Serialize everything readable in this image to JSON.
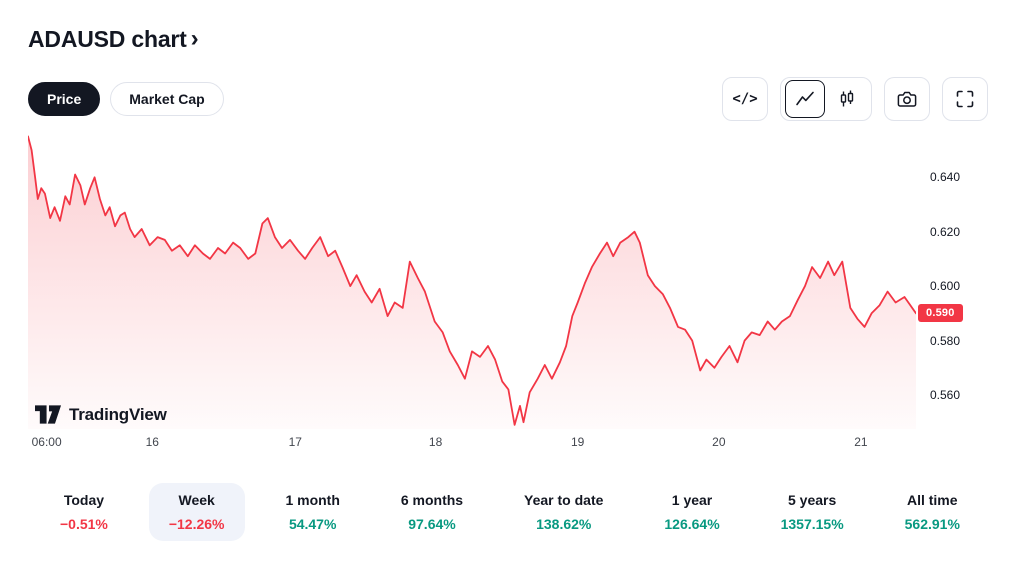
{
  "header": {
    "title": "ADAUSD chart",
    "chevron": "›"
  },
  "toolbar": {
    "price_tab": "Price",
    "market_cap_tab": "Market Cap",
    "code_icon": "</>"
  },
  "watermark": {
    "text": "TradingView"
  },
  "colors": {
    "up": "#089981",
    "down": "#F23645",
    "accent": "#F23645",
    "border": "#e0e3eb"
  },
  "chart_data": {
    "type": "area",
    "symbol": "ADAUSD",
    "title": "ADAUSD price, 1 week range",
    "line_color": "#F23645",
    "ylim": [
      0.5475,
      0.657
    ],
    "grid": "off",
    "legend": "none",
    "y_ticks": [
      {
        "label": "0.640",
        "value": 0.64
      },
      {
        "label": "0.620",
        "value": 0.62
      },
      {
        "label": "0.600",
        "value": 0.6
      },
      {
        "label": "0.580",
        "value": 0.58
      },
      {
        "label": "0.560",
        "value": 0.56
      }
    ],
    "x_ticks": [
      {
        "label": "06:00",
        "pos": 0.021
      },
      {
        "label": "16",
        "pos": 0.14
      },
      {
        "label": "17",
        "pos": 0.301
      },
      {
        "label": "18",
        "pos": 0.459
      },
      {
        "label": "19",
        "pos": 0.619
      },
      {
        "label": "20",
        "pos": 0.778
      },
      {
        "label": "21",
        "pos": 0.938
      }
    ],
    "last_price": {
      "label": "0.590",
      "value": 0.59
    },
    "points": [
      [
        0.0,
        0.655
      ],
      [
        0.004,
        0.65
      ],
      [
        0.008,
        0.64
      ],
      [
        0.011,
        0.632
      ],
      [
        0.015,
        0.636
      ],
      [
        0.019,
        0.634
      ],
      [
        0.025,
        0.625
      ],
      [
        0.03,
        0.629
      ],
      [
        0.036,
        0.624
      ],
      [
        0.042,
        0.633
      ],
      [
        0.047,
        0.63
      ],
      [
        0.053,
        0.641
      ],
      [
        0.059,
        0.637
      ],
      [
        0.064,
        0.63
      ],
      [
        0.07,
        0.636
      ],
      [
        0.075,
        0.64
      ],
      [
        0.081,
        0.632
      ],
      [
        0.087,
        0.626
      ],
      [
        0.092,
        0.629
      ],
      [
        0.098,
        0.622
      ],
      [
        0.104,
        0.626
      ],
      [
        0.109,
        0.627
      ],
      [
        0.115,
        0.621
      ],
      [
        0.12,
        0.618
      ],
      [
        0.128,
        0.621
      ],
      [
        0.137,
        0.615
      ],
      [
        0.146,
        0.618
      ],
      [
        0.154,
        0.617
      ],
      [
        0.162,
        0.613
      ],
      [
        0.171,
        0.615
      ],
      [
        0.18,
        0.611
      ],
      [
        0.188,
        0.615
      ],
      [
        0.197,
        0.612
      ],
      [
        0.205,
        0.61
      ],
      [
        0.214,
        0.614
      ],
      [
        0.222,
        0.612
      ],
      [
        0.231,
        0.616
      ],
      [
        0.239,
        0.614
      ],
      [
        0.248,
        0.61
      ],
      [
        0.256,
        0.612
      ],
      [
        0.264,
        0.623
      ],
      [
        0.27,
        0.625
      ],
      [
        0.278,
        0.618
      ],
      [
        0.286,
        0.614
      ],
      [
        0.295,
        0.617
      ],
      [
        0.304,
        0.613
      ],
      [
        0.312,
        0.61
      ],
      [
        0.32,
        0.614
      ],
      [
        0.329,
        0.618
      ],
      [
        0.338,
        0.611
      ],
      [
        0.346,
        0.613
      ],
      [
        0.354,
        0.607
      ],
      [
        0.363,
        0.6
      ],
      [
        0.37,
        0.604
      ],
      [
        0.379,
        0.598
      ],
      [
        0.387,
        0.594
      ],
      [
        0.396,
        0.599
      ],
      [
        0.405,
        0.589
      ],
      [
        0.413,
        0.594
      ],
      [
        0.422,
        0.592
      ],
      [
        0.43,
        0.609
      ],
      [
        0.439,
        0.603
      ],
      [
        0.447,
        0.598
      ],
      [
        0.458,
        0.587
      ],
      [
        0.467,
        0.583
      ],
      [
        0.475,
        0.576
      ],
      [
        0.484,
        0.571
      ],
      [
        0.492,
        0.566
      ],
      [
        0.5,
        0.576
      ],
      [
        0.509,
        0.574
      ],
      [
        0.518,
        0.578
      ],
      [
        0.526,
        0.573
      ],
      [
        0.534,
        0.565
      ],
      [
        0.541,
        0.562
      ],
      [
        0.548,
        0.549
      ],
      [
        0.554,
        0.556
      ],
      [
        0.558,
        0.55
      ],
      [
        0.565,
        0.561
      ],
      [
        0.574,
        0.566
      ],
      [
        0.582,
        0.571
      ],
      [
        0.59,
        0.566
      ],
      [
        0.599,
        0.572
      ],
      [
        0.606,
        0.578
      ],
      [
        0.613,
        0.589
      ],
      [
        0.619,
        0.594
      ],
      [
        0.627,
        0.601
      ],
      [
        0.635,
        0.607
      ],
      [
        0.644,
        0.612
      ],
      [
        0.652,
        0.616
      ],
      [
        0.659,
        0.611
      ],
      [
        0.667,
        0.616
      ],
      [
        0.676,
        0.618
      ],
      [
        0.683,
        0.62
      ],
      [
        0.689,
        0.616
      ],
      [
        0.698,
        0.604
      ],
      [
        0.706,
        0.6
      ],
      [
        0.715,
        0.597
      ],
      [
        0.723,
        0.592
      ],
      [
        0.732,
        0.585
      ],
      [
        0.74,
        0.584
      ],
      [
        0.748,
        0.58
      ],
      [
        0.757,
        0.569
      ],
      [
        0.764,
        0.573
      ],
      [
        0.773,
        0.57
      ],
      [
        0.781,
        0.574
      ],
      [
        0.79,
        0.578
      ],
      [
        0.799,
        0.572
      ],
      [
        0.807,
        0.58
      ],
      [
        0.815,
        0.583
      ],
      [
        0.824,
        0.582
      ],
      [
        0.833,
        0.587
      ],
      [
        0.841,
        0.584
      ],
      [
        0.849,
        0.587
      ],
      [
        0.858,
        0.589
      ],
      [
        0.867,
        0.595
      ],
      [
        0.875,
        0.6
      ],
      [
        0.883,
        0.607
      ],
      [
        0.892,
        0.603
      ],
      [
        0.901,
        0.609
      ],
      [
        0.908,
        0.604
      ],
      [
        0.917,
        0.609
      ],
      [
        0.926,
        0.592
      ],
      [
        0.934,
        0.588
      ],
      [
        0.942,
        0.585
      ],
      [
        0.95,
        0.59
      ],
      [
        0.959,
        0.593
      ],
      [
        0.968,
        0.598
      ],
      [
        0.977,
        0.594
      ],
      [
        0.987,
        0.596
      ],
      [
        1.0,
        0.59
      ]
    ]
  },
  "periods": [
    {
      "label": "Today",
      "value": "−0.51%",
      "direction": "down",
      "selected": false
    },
    {
      "label": "Week",
      "value": "−12.26%",
      "direction": "down",
      "selected": true
    },
    {
      "label": "1 month",
      "value": "54.47%",
      "direction": "up",
      "selected": false
    },
    {
      "label": "6 months",
      "value": "97.64%",
      "direction": "up",
      "selected": false
    },
    {
      "label": "Year to date",
      "value": "138.62%",
      "direction": "up",
      "selected": false
    },
    {
      "label": "1 year",
      "value": "126.64%",
      "direction": "up",
      "selected": false
    },
    {
      "label": "5 years",
      "value": "1357.15%",
      "direction": "up",
      "selected": false
    },
    {
      "label": "All time",
      "value": "562.91%",
      "direction": "up",
      "selected": false
    }
  ]
}
